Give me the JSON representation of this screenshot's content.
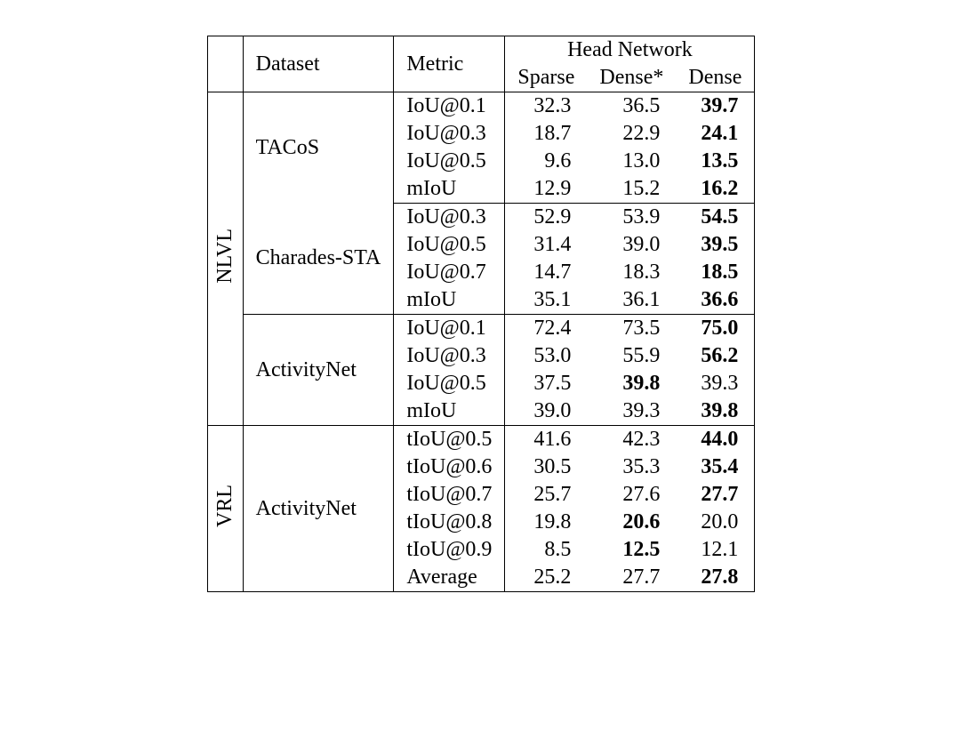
{
  "header": {
    "dataset": "Dataset",
    "metric": "Metric",
    "head_network": "Head Network",
    "sparse": "Sparse",
    "dense_star": "Dense*",
    "dense": "Dense"
  },
  "groups": [
    {
      "label": "NLVL",
      "datasets": [
        {
          "name": "TACoS",
          "rows": [
            {
              "metric": "IoU@0.1",
              "sparse": "32.3",
              "dense_star": "36.5",
              "dense": "39.7",
              "bold": [
                false,
                false,
                true
              ]
            },
            {
              "metric": "IoU@0.3",
              "sparse": "18.7",
              "dense_star": "22.9",
              "dense": "24.1",
              "bold": [
                false,
                false,
                true
              ]
            },
            {
              "metric": "IoU@0.5",
              "sparse": "9.6",
              "dense_star": "13.0",
              "dense": "13.5",
              "bold": [
                false,
                false,
                true
              ]
            },
            {
              "metric": "mIoU",
              "sparse": "12.9",
              "dense_star": "15.2",
              "dense": "16.2",
              "bold": [
                false,
                false,
                true
              ]
            }
          ]
        },
        {
          "name": "Charades-STA",
          "rows": [
            {
              "metric": "IoU@0.3",
              "sparse": "52.9",
              "dense_star": "53.9",
              "dense": "54.5",
              "bold": [
                false,
                false,
                true
              ]
            },
            {
              "metric": "IoU@0.5",
              "sparse": "31.4",
              "dense_star": "39.0",
              "dense": "39.5",
              "bold": [
                false,
                false,
                true
              ]
            },
            {
              "metric": "IoU@0.7",
              "sparse": "14.7",
              "dense_star": "18.3",
              "dense": "18.5",
              "bold": [
                false,
                false,
                true
              ]
            },
            {
              "metric": "mIoU",
              "sparse": "35.1",
              "dense_star": "36.1",
              "dense": "36.6",
              "bold": [
                false,
                false,
                true
              ]
            }
          ]
        },
        {
          "name": "ActivityNet",
          "rows": [
            {
              "metric": "IoU@0.1",
              "sparse": "72.4",
              "dense_star": "73.5",
              "dense": "75.0",
              "bold": [
                false,
                false,
                true
              ]
            },
            {
              "metric": "IoU@0.3",
              "sparse": "53.0",
              "dense_star": "55.9",
              "dense": "56.2",
              "bold": [
                false,
                false,
                true
              ]
            },
            {
              "metric": "IoU@0.5",
              "sparse": "37.5",
              "dense_star": "39.8",
              "dense": "39.3",
              "bold": [
                false,
                true,
                false
              ]
            },
            {
              "metric": "mIoU",
              "sparse": "39.0",
              "dense_star": "39.3",
              "dense": "39.8",
              "bold": [
                false,
                false,
                true
              ]
            }
          ]
        }
      ]
    },
    {
      "label": "VRL",
      "datasets": [
        {
          "name": "ActivityNet",
          "rows": [
            {
              "metric": "tIoU@0.5",
              "sparse": "41.6",
              "dense_star": "42.3",
              "dense": "44.0",
              "bold": [
                false,
                false,
                true
              ]
            },
            {
              "metric": "tIoU@0.6",
              "sparse": "30.5",
              "dense_star": "35.3",
              "dense": "35.4",
              "bold": [
                false,
                false,
                true
              ]
            },
            {
              "metric": "tIoU@0.7",
              "sparse": "25.7",
              "dense_star": "27.6",
              "dense": "27.7",
              "bold": [
                false,
                false,
                true
              ]
            },
            {
              "metric": "tIoU@0.8",
              "sparse": "19.8",
              "dense_star": "20.6",
              "dense": "20.0",
              "bold": [
                false,
                true,
                false
              ]
            },
            {
              "metric": "tIoU@0.9",
              "sparse": "8.5",
              "dense_star": "12.5",
              "dense": "12.1",
              "bold": [
                false,
                true,
                false
              ]
            },
            {
              "metric": "Average",
              "sparse": "25.2",
              "dense_star": "27.7",
              "dense": "27.8",
              "bold": [
                false,
                false,
                true
              ]
            }
          ]
        }
      ]
    }
  ]
}
